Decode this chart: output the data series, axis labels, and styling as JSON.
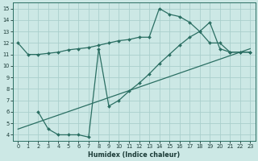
{
  "xlabel": "Humidex (Indice chaleur)",
  "bg_color": "#cce8e5",
  "line_color": "#2a6e62",
  "grid_color": "#aacfcc",
  "xlim": [
    -0.5,
    23.5
  ],
  "ylim": [
    3.5,
    15.5
  ],
  "xticks": [
    0,
    1,
    2,
    3,
    4,
    5,
    6,
    7,
    8,
    9,
    10,
    11,
    12,
    13,
    14,
    15,
    16,
    17,
    18,
    19,
    20,
    21,
    22,
    23
  ],
  "yticks": [
    4,
    5,
    6,
    7,
    8,
    9,
    10,
    11,
    12,
    13,
    14,
    15
  ],
  "line1_x": [
    0,
    1,
    2,
    3,
    4,
    5,
    6,
    7,
    8,
    9,
    10,
    11,
    12,
    13,
    14,
    15,
    16,
    17,
    18,
    19,
    20,
    21,
    22,
    23
  ],
  "line1_y": [
    12,
    11,
    11,
    11.1,
    11.2,
    11.4,
    11.5,
    11.6,
    11.8,
    12.0,
    12.2,
    12.3,
    12.5,
    12.5,
    15.0,
    14.5,
    14.3,
    13.8,
    13.0,
    12.0,
    12.0,
    11.2,
    11.2,
    11.2
  ],
  "line2_x": [
    0,
    23
  ],
  "line2_y": [
    4.5,
    11.5
  ],
  "line3_x": [
    2,
    3,
    4,
    5,
    6,
    7,
    8,
    9,
    10,
    11,
    12,
    13,
    14,
    15,
    16,
    17,
    18,
    19,
    20,
    21,
    22,
    23
  ],
  "line3_y": [
    6.0,
    4.5,
    4.0,
    4.0,
    4.0,
    3.8,
    11.5,
    6.5,
    7.0,
    7.8,
    8.5,
    9.3,
    10.2,
    11.0,
    11.8,
    12.5,
    13.0,
    13.8,
    11.5,
    11.2,
    11.2,
    11.2
  ]
}
